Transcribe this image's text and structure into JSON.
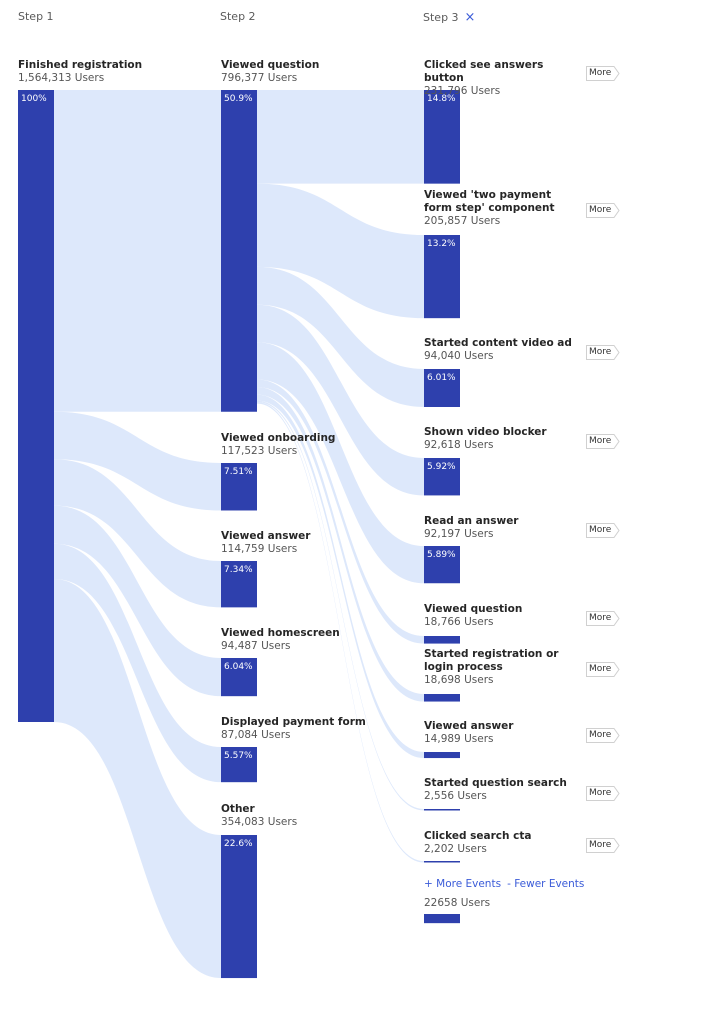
{
  "steps": {
    "step1": "Step 1",
    "step2": "Step 2",
    "step3": "Step 3",
    "close_icon": "×"
  },
  "colors": {
    "node": "#2e40ad",
    "flow": "#dde8fb",
    "accent": "#3a5bd8"
  },
  "chart_data": {
    "type": "sankey",
    "unit": "Users",
    "columns": [
      {
        "step": "Step 1",
        "nodes": [
          {
            "name": "Finished registration",
            "count": "1,564,313 Users",
            "users": 1564313,
            "percent": "100%"
          }
        ]
      },
      {
        "step": "Step 2",
        "nodes": [
          {
            "name": "Viewed question",
            "count": "796,377 Users",
            "users": 796377,
            "percent": "50.9%"
          },
          {
            "name": "Viewed onboarding",
            "count": "117,523 Users",
            "users": 117523,
            "percent": "7.51%"
          },
          {
            "name": "Viewed answer",
            "count": "114,759 Users",
            "users": 114759,
            "percent": "7.34%"
          },
          {
            "name": "Viewed homescreen",
            "count": "94,487 Users",
            "users": 94487,
            "percent": "6.04%"
          },
          {
            "name": "Displayed payment form",
            "count": "87,084 Users",
            "users": 87084,
            "percent": "5.57%"
          },
          {
            "name": "Other",
            "count": "354,083 Users",
            "users": 354083,
            "percent": "22.6%"
          }
        ]
      },
      {
        "step": "Step 3",
        "nodes": [
          {
            "name": "Clicked see answers button",
            "count": "231,796 Users",
            "users": 231796,
            "percent": "14.8%"
          },
          {
            "name": "Viewed 'two payment form step' component",
            "count": "205,857 Users",
            "users": 205857,
            "percent": "13.2%"
          },
          {
            "name": "Started content video ad",
            "count": "94,040 Users",
            "users": 94040,
            "percent": "6.01%"
          },
          {
            "name": "Shown video blocker",
            "count": "92,618 Users",
            "users": 92618,
            "percent": "5.92%"
          },
          {
            "name": "Read an answer",
            "count": "92,197 Users",
            "users": 92197,
            "percent": "5.89%"
          },
          {
            "name": "Viewed question",
            "count": "18,766 Users",
            "users": 18766,
            "percent": ""
          },
          {
            "name": "Started registration or login process",
            "count": "18,698 Users",
            "users": 18698,
            "percent": ""
          },
          {
            "name": "Viewed answer",
            "count": "14,989 Users",
            "users": 14989,
            "percent": ""
          },
          {
            "name": "Started question search",
            "count": "2,556 Users",
            "users": 2556,
            "percent": ""
          },
          {
            "name": "Clicked search cta",
            "count": "2,202 Users",
            "users": 2202,
            "percent": ""
          }
        ],
        "more_label": "More",
        "other_count": "22658 Users",
        "other_users": 22658
      }
    ]
  },
  "footer": {
    "more_events": "+ More Events",
    "fewer_events": "- Fewer Events"
  }
}
